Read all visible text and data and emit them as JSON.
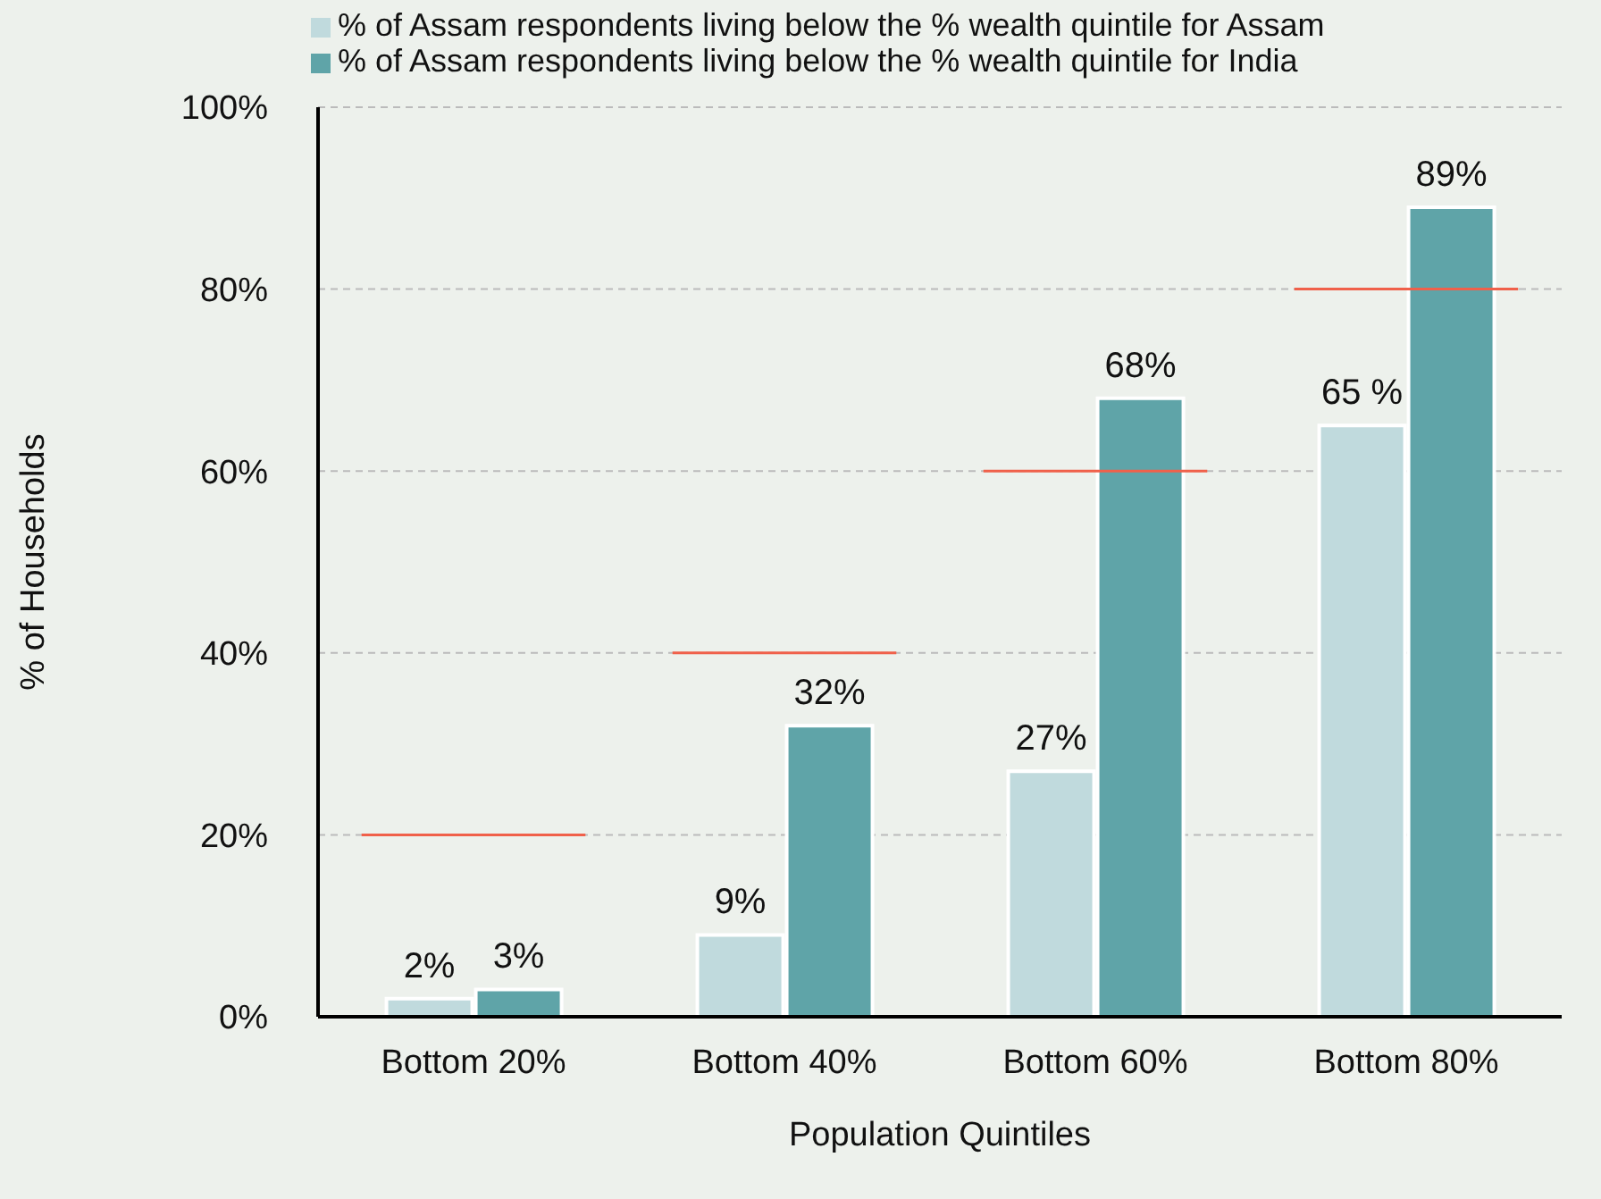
{
  "chart_data": {
    "type": "bar",
    "xlabel": "Population Quintiles",
    "ylabel": "% of Households",
    "categories": [
      "Bottom 20%",
      "Bottom 40%",
      "Bottom 60%",
      "Bottom 80%"
    ],
    "series": [
      {
        "name": "% of Assam respondents living below the % wealth quintile for Assam",
        "color": "#c0dadd",
        "values": [
          2,
          9,
          27,
          65
        ],
        "value_labels": [
          "2%",
          "9%",
          "27%",
          "65 %"
        ]
      },
      {
        "name": "% of Assam respondents living below the % wealth quintile for India",
        "color": "#5fa4a8",
        "values": [
          3,
          32,
          68,
          89
        ],
        "value_labels": [
          "3%",
          "32%",
          "68%",
          "89%"
        ]
      }
    ],
    "ref_lines": [
      {
        "axis": "y",
        "value": 20,
        "color": "#f0604a"
      },
      {
        "axis": "y",
        "value": 40,
        "color": "#f0604a"
      },
      {
        "axis": "y",
        "value": 60,
        "color": "#f0604a"
      },
      {
        "axis": "y",
        "value": 80,
        "color": "#f0604a"
      }
    ],
    "ylim": [
      0,
      100
    ],
    "yticks": [
      {
        "value": 0,
        "label": "0%"
      },
      {
        "value": 20,
        "label": "20%"
      },
      {
        "value": 40,
        "label": "40%"
      },
      {
        "value": 60,
        "label": "60%"
      },
      {
        "value": 80,
        "label": "80%"
      },
      {
        "value": 100,
        "label": "100%"
      }
    ],
    "grid": "y",
    "legend": "top left"
  }
}
